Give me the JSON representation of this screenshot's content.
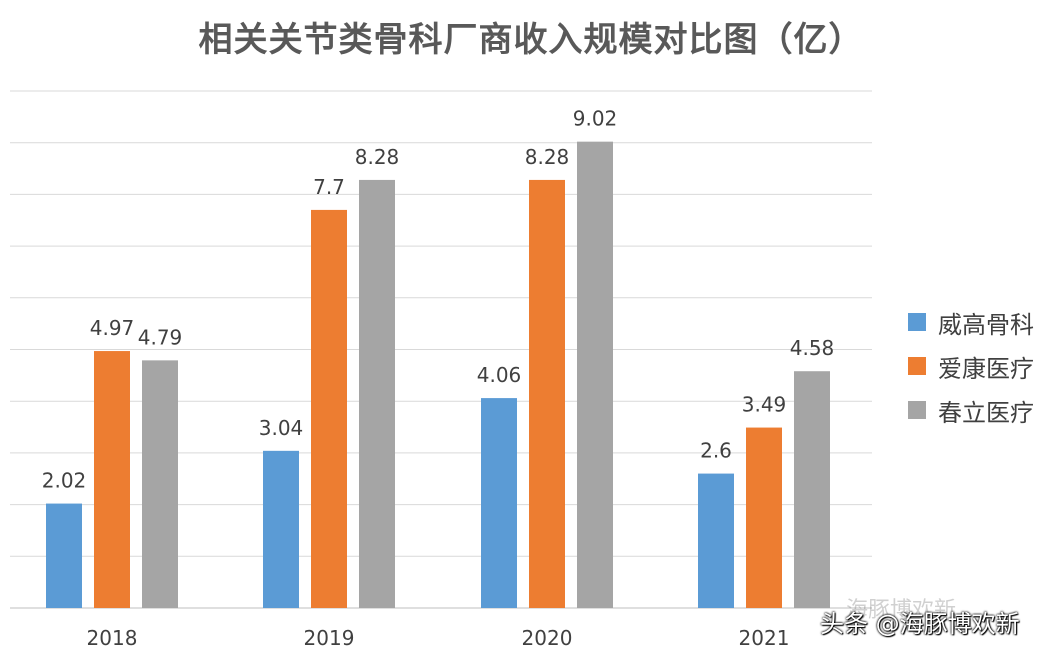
{
  "chart_data": {
    "type": "bar",
    "title": "相关关节类骨科厂商收入规模对比图（亿）",
    "categories": [
      "2018",
      "2019",
      "2020",
      "2021"
    ],
    "series": [
      {
        "name": "威高骨科",
        "color": "#5B9BD5",
        "values": [
          2.02,
          3.04,
          4.06,
          2.6
        ]
      },
      {
        "name": "爱康医疗",
        "color": "#ED7D31",
        "values": [
          4.97,
          7.7,
          8.28,
          3.49
        ]
      },
      {
        "name": "春立医疗",
        "color": "#A5A5A5",
        "values": [
          4.79,
          8.28,
          9.02,
          4.58
        ]
      }
    ],
    "ylim": [
      0,
      10
    ],
    "grid": true,
    "legend_position": "right",
    "data_labels": [
      [
        "2.02",
        "3.04",
        "4.06",
        "2.6"
      ],
      [
        "4.97",
        "7.7",
        "8.28",
        "3.49"
      ],
      [
        "4.79",
        "8.28",
        "9.02",
        "4.58"
      ]
    ]
  },
  "watermark": {
    "text": "头条 @海豚博欢新",
    "faint_text": "海豚博欢新"
  }
}
